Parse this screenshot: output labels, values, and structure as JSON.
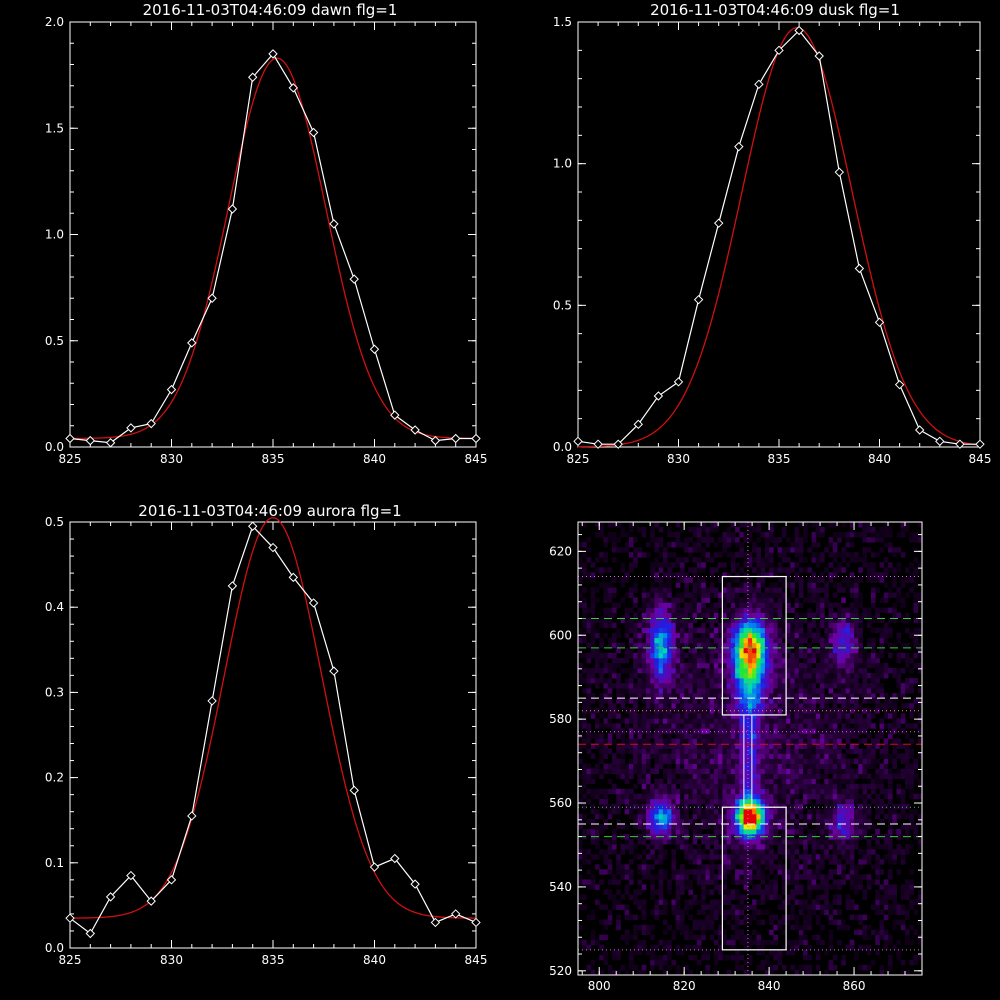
{
  "chart_data": [
    {
      "type": "line",
      "title": "2016-11-03T04:46:09 dawn flg=1",
      "xlim": [
        825,
        845
      ],
      "ylim": [
        0,
        2.0
      ],
      "xticks": [
        "825",
        "830",
        "835",
        "840",
        "845"
      ],
      "yticks": [
        "0.0",
        "0.5",
        "1.0",
        "1.5",
        "2.0"
      ],
      "x": [
        825,
        826,
        827,
        828,
        829,
        830,
        831,
        832,
        833,
        834,
        835,
        836,
        837,
        838,
        839,
        840,
        841,
        842,
        843,
        844,
        845
      ],
      "series": [
        {
          "values": [
            0.04,
            0.03,
            0.02,
            0.09,
            0.11,
            0.27,
            0.49,
            0.7,
            1.12,
            1.74,
            1.85,
            1.69,
            1.48,
            1.05,
            0.79,
            0.46,
            0.15,
            0.08,
            0.03,
            0.04,
            0.04
          ],
          "color": "#ffffff",
          "markers": "diamond"
        },
        {
          "fit": {
            "a": 1.79,
            "mu": 835.2,
            "sigma": 2.4,
            "b": 0.04
          },
          "color": "#d01010"
        }
      ]
    },
    {
      "type": "line",
      "title": "2016-11-03T04:46:09 dusk flg=1",
      "xlim": [
        825,
        845
      ],
      "ylim": [
        0,
        1.5
      ],
      "xticks": [
        "825",
        "830",
        "835",
        "840",
        "845"
      ],
      "yticks": [
        "0.0",
        "0.5",
        "1.0",
        "1.5"
      ],
      "x": [
        825,
        826,
        827,
        828,
        829,
        830,
        831,
        832,
        833,
        834,
        835,
        836,
        837,
        838,
        839,
        840,
        841,
        842,
        843,
        844,
        845
      ],
      "series": [
        {
          "values": [
            0.02,
            0.01,
            0.01,
            0.08,
            0.18,
            0.23,
            0.52,
            0.79,
            1.06,
            1.28,
            1.4,
            1.47,
            1.38,
            0.97,
            0.63,
            0.44,
            0.22,
            0.06,
            0.02,
            0.01,
            0.01
          ],
          "color": "#ffffff",
          "markers": "diamond"
        },
        {
          "fit": {
            "a": 1.48,
            "mu": 835.9,
            "sigma": 2.75,
            "b": 0.0
          },
          "color": "#d01010"
        }
      ]
    },
    {
      "type": "line",
      "title": "2016-11-03T04:46:09 aurora flg=1",
      "xlim": [
        825,
        845
      ],
      "ylim": [
        0,
        0.5
      ],
      "xticks": [
        "825",
        "830",
        "835",
        "840",
        "845"
      ],
      "yticks": [
        "0.0",
        "0.1",
        "0.2",
        "0.3",
        "0.4",
        "0.5"
      ],
      "x": [
        825,
        826,
        827,
        828,
        829,
        830,
        831,
        832,
        833,
        834,
        835,
        836,
        837,
        838,
        839,
        840,
        841,
        842,
        843,
        844,
        845
      ],
      "series": [
        {
          "values": [
            0.035,
            0.017,
            0.06,
            0.085,
            0.055,
            0.08,
            0.155,
            0.29,
            0.425,
            0.495,
            0.47,
            0.435,
            0.405,
            0.325,
            0.185,
            0.095,
            0.105,
            0.075,
            0.03,
            0.04,
            0.03
          ],
          "color": "#ffffff",
          "markers": "diamond"
        },
        {
          "fit": {
            "a": 0.47,
            "mu": 835.0,
            "sigma": 2.4,
            "b": 0.035
          },
          "color": "#d01010"
        }
      ]
    },
    {
      "type": "heatmap",
      "title": "",
      "xlim": [
        795,
        876
      ],
      "ylim": [
        519,
        627
      ],
      "xticks": [
        "800",
        "820",
        "840",
        "860"
      ],
      "yticks": [
        "520",
        "540",
        "560",
        "580",
        "600",
        "620"
      ],
      "blobs": [
        {
          "x": 835,
          "y": 556,
          "sx": 2.4,
          "sy": 3.0,
          "amp": 1.0
        },
        {
          "x": 835,
          "y": 597,
          "sx": 2.8,
          "sy": 4.5,
          "amp": 0.7
        },
        {
          "x": 835,
          "y": 589,
          "sx": 2.6,
          "sy": 6.0,
          "amp": 0.45
        },
        {
          "x": 835,
          "y": 570,
          "sx": 1.6,
          "sy": 9.0,
          "amp": 0.25
        },
        {
          "x": 814,
          "y": 597,
          "sx": 2.0,
          "sy": 6.0,
          "amp": 0.5
        },
        {
          "x": 814,
          "y": 556,
          "sx": 2.0,
          "sy": 3.0,
          "amp": 0.5
        },
        {
          "x": 857,
          "y": 598,
          "sx": 2.0,
          "sy": 4.0,
          "amp": 0.3
        },
        {
          "x": 857,
          "y": 555,
          "sx": 2.0,
          "sy": 3.0,
          "amp": 0.3
        },
        {
          "x": 835,
          "y": 575,
          "sx": 25.0,
          "sy": 30.0,
          "amp": 0.12
        }
      ],
      "boxes": [
        {
          "x0": 829,
          "x1": 844,
          "y0": 581,
          "y1": 614
        },
        {
          "x0": 829,
          "x1": 844,
          "y0": 525,
          "y1": 559
        }
      ],
      "center_x": 835,
      "hlines": [
        {
          "y": 614,
          "color": "#d070d0",
          "style": "dotted"
        },
        {
          "y": 604,
          "color": "#30d030",
          "style": "dashed"
        },
        {
          "y": 597,
          "color": "#30d030",
          "style": "dashed"
        },
        {
          "y": 585,
          "color": "#ffffff",
          "style": "dashed"
        },
        {
          "y": 582,
          "color": "#d0a040",
          "style": "dotted"
        },
        {
          "y": 577,
          "color": "#d070d0",
          "style": "dotted"
        },
        {
          "y": 574,
          "color": "#d01010",
          "style": "dashed"
        },
        {
          "y": 559,
          "color": "#30d030",
          "style": "dotted"
        },
        {
          "y": 555,
          "color": "#ffffff",
          "style": "dashed"
        },
        {
          "y": 552,
          "color": "#30d030",
          "style": "dashed"
        },
        {
          "y": 525,
          "color": "#d070d0",
          "style": "dotted"
        }
      ]
    }
  ]
}
